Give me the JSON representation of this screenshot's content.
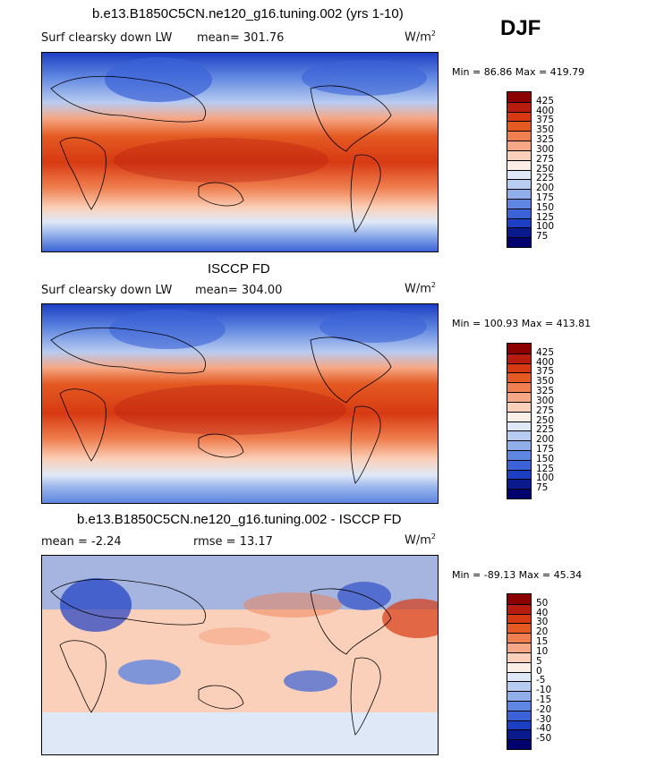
{
  "season": "DJF",
  "units_main": "W/m",
  "units_sup": "2",
  "panels": [
    {
      "title": "b.e13.B1850C5CN.ne120_g16.tuning.002 (yrs 1-10)",
      "left_text": "Surf clearsky down LW",
      "right_label": "mean=",
      "right_value": "301.76",
      "minmax": "Min =  86.86 Max = 419.79",
      "colorbar": {
        "labels": [
          "425",
          "400",
          "375",
          "350",
          "325",
          "300",
          "275",
          "250",
          "225",
          "200",
          "175",
          "150",
          "125",
          "100",
          "75"
        ],
        "colors": [
          "#8b0000",
          "#b71c0f",
          "#d73a12",
          "#e45a22",
          "#ef7f4f",
          "#f6a785",
          "#fbd0ba",
          "#fbeee6",
          "#dfe8f7",
          "#b8cbf0",
          "#90aeea",
          "#5f86e0",
          "#3b63d7",
          "#1d3fc3",
          "#0a1a8c",
          "#00006e"
        ]
      }
    },
    {
      "title": "ISCCP FD",
      "left_text": "Surf clearsky down LW",
      "right_label": "mean=",
      "right_value": "304.00",
      "minmax": "Min = 100.93 Max = 413.81",
      "colorbar": {
        "labels": [
          "425",
          "400",
          "375",
          "350",
          "325",
          "300",
          "275",
          "250",
          "225",
          "200",
          "175",
          "150",
          "125",
          "100",
          "75"
        ],
        "colors": [
          "#8b0000",
          "#b71c0f",
          "#d73a12",
          "#e45a22",
          "#ef7f4f",
          "#f6a785",
          "#fbd0ba",
          "#fbeee6",
          "#dfe8f7",
          "#b8cbf0",
          "#90aeea",
          "#5f86e0",
          "#3b63d7",
          "#1d3fc3",
          "#0a1a8c",
          "#00006e"
        ]
      }
    },
    {
      "title": "b.e13.B1850C5CN.ne120_g16.tuning.002 - ISCCP FD",
      "left_text": "mean =  -2.24",
      "right_label": "rmse =",
      "right_value": "13.17",
      "minmax": "Min = -89.13 Max =  45.34",
      "colorbar": {
        "labels": [
          "50",
          "40",
          "30",
          "20",
          "15",
          "10",
          "5",
          "0",
          "-5",
          "-10",
          "-15",
          "-20",
          "-30",
          "-40",
          "-50"
        ],
        "colors": [
          "#8b0000",
          "#b71c0f",
          "#d73a12",
          "#e45a22",
          "#ef7f4f",
          "#f6a785",
          "#fbd0ba",
          "#fbeee6",
          "#dfe8f7",
          "#b8cbf0",
          "#90aeea",
          "#5f86e0",
          "#3b63d7",
          "#1d3fc3",
          "#0a1a8c",
          "#00006e"
        ]
      }
    }
  ]
}
